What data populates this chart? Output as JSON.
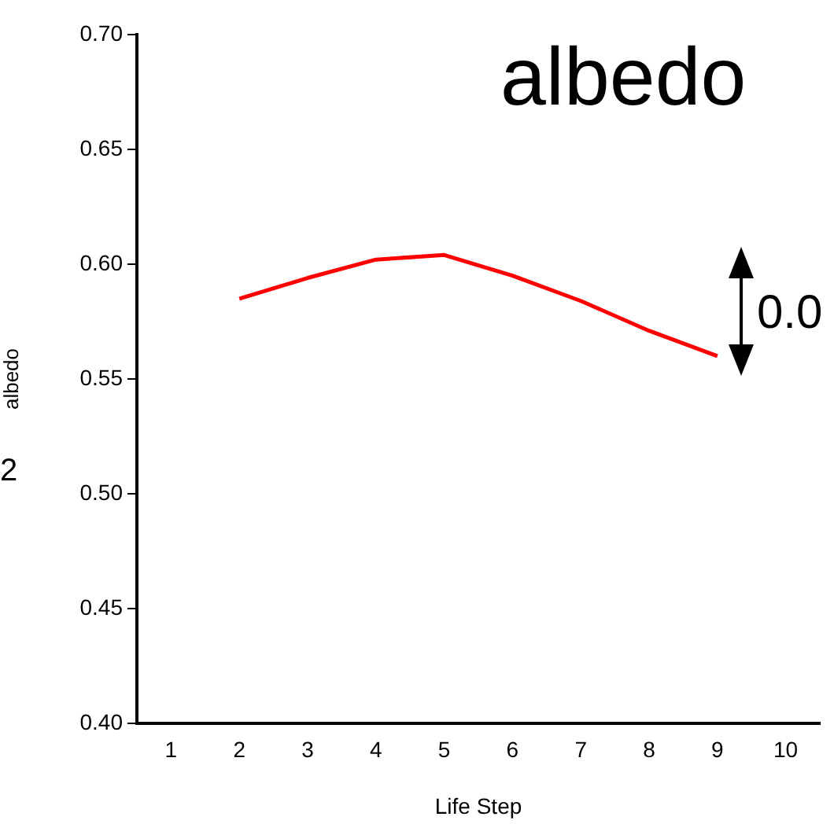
{
  "chart_data": {
    "type": "line",
    "title": "albedo",
    "xlabel": "Life Step",
    "ylabel": "albedo",
    "annotations": [
      "2",
      "0.0"
    ],
    "x": [
      2,
      3,
      4,
      5,
      6,
      7,
      8,
      9
    ],
    "series": [
      {
        "color": "#ff0000",
        "values": [
          0.585,
          0.594,
          0.602,
          0.604,
          0.595,
          0.584,
          0.571,
          0.56
        ]
      }
    ],
    "xlim": [
      0.5,
      10.5
    ],
    "xticks": [
      1,
      2,
      3,
      4,
      5,
      6,
      7,
      8,
      9,
      10
    ],
    "ylim": [
      0.4,
      0.7
    ],
    "yticks": [
      {
        "value": 0.4,
        "label": "0.40"
      },
      {
        "value": 0.45,
        "label": "0.45"
      },
      {
        "value": 0.5,
        "label": "0.50"
      },
      {
        "value": 0.55,
        "label": "0.55"
      },
      {
        "value": 0.6,
        "label": "0.60"
      },
      {
        "value": 0.65,
        "label": "0.65"
      },
      {
        "value": 0.7,
        "label": "0.70"
      }
    ],
    "grid": false,
    "legend": false,
    "marker": "none",
    "line_style": "solid"
  }
}
